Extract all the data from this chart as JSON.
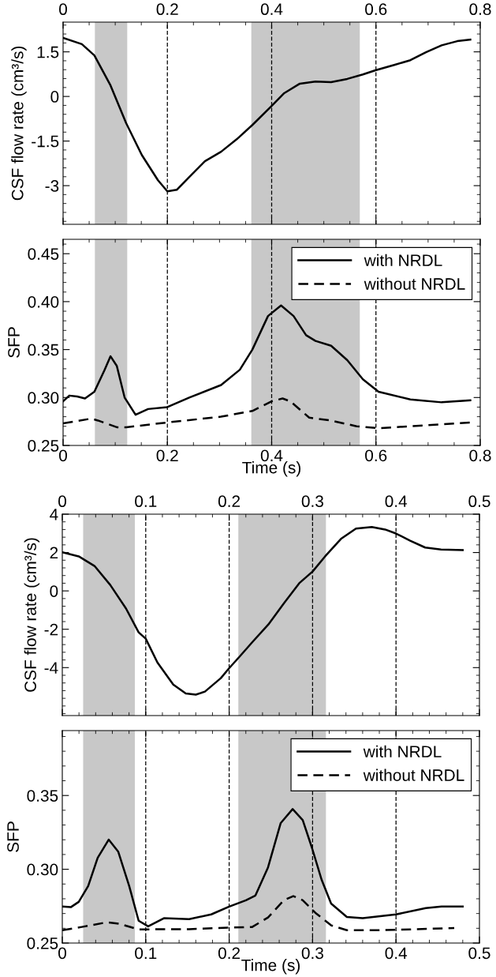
{
  "chart_data": [
    {
      "type": "line",
      "ylabel": "CSF flow rate (cm³/s)",
      "xlim": [
        0,
        0.8
      ],
      "xticks": [
        0,
        0.2,
        0.4,
        0.6,
        0.8
      ],
      "ylim": [
        -4.3,
        2.5
      ],
      "yticks": [
        -3,
        -1.5,
        0,
        1.5
      ],
      "grid": false,
      "legend": false,
      "bands": [
        {
          "axis": "x",
          "from": 0.061,
          "to": 0.123,
          "color": "#c8c8c8"
        },
        {
          "axis": "x",
          "from": 0.361,
          "to": 0.569,
          "color": "#c8c8c8"
        }
      ],
      "ref_lines": [
        {
          "axis": "x",
          "value": 0.2,
          "color": "#000000",
          "line_style": "dashed"
        },
        {
          "axis": "x",
          "value": 0.4,
          "color": "#000000",
          "line_style": "dashed"
        },
        {
          "axis": "x",
          "value": 0.6,
          "color": "#000000",
          "line_style": "dashed"
        }
      ],
      "series": [
        {
          "color": "#000000",
          "line_style": "solid",
          "x": [
            0,
            0.036,
            0.06,
            0.091,
            0.121,
            0.151,
            0.182,
            0.2,
            0.218,
            0.242,
            0.272,
            0.303,
            0.333,
            0.363,
            0.4,
            0.424,
            0.454,
            0.484,
            0.514,
            0.545,
            0.575,
            0.599,
            0.635,
            0.666,
            0.696,
            0.726,
            0.756,
            0.781
          ],
          "values": [
            1.97,
            1.76,
            1.38,
            0.37,
            -0.9,
            -1.97,
            -2.82,
            -3.19,
            -3.14,
            -2.71,
            -2.18,
            -1.86,
            -1.44,
            -0.96,
            -0.32,
            0.11,
            0.43,
            0.5,
            0.48,
            0.59,
            0.74,
            0.88,
            1.06,
            1.22,
            1.49,
            1.72,
            1.86,
            1.91
          ]
        }
      ]
    },
    {
      "type": "line",
      "xlabel": "Time (s)",
      "ylabel": "SFP",
      "xlim": [
        0,
        0.8
      ],
      "xticks": [
        0,
        0.2,
        0.4,
        0.6,
        0.8
      ],
      "ylim": [
        0.25,
        0.465
      ],
      "yticks": [
        {
          "value": 0.25,
          "label": "0.25"
        },
        {
          "value": 0.3,
          "label": "0.30"
        },
        {
          "value": 0.35,
          "label": "0.35"
        },
        {
          "value": 0.4,
          "label": "0.40"
        },
        {
          "value": 0.45,
          "label": "0.45"
        }
      ],
      "grid": false,
      "legend": "top right",
      "bands": [
        {
          "axis": "x",
          "from": 0.061,
          "to": 0.123,
          "color": "#c8c8c8"
        },
        {
          "axis": "x",
          "from": 0.361,
          "to": 0.569,
          "color": "#c8c8c8"
        }
      ],
      "ref_lines": [
        {
          "axis": "x",
          "value": 0.2,
          "color": "#000000",
          "line_style": "dashed"
        },
        {
          "axis": "x",
          "value": 0.4,
          "color": "#000000",
          "line_style": "dashed"
        },
        {
          "axis": "x",
          "value": 0.6,
          "color": "#000000",
          "line_style": "dashed"
        }
      ],
      "series": [
        {
          "name": "with NRDL",
          "color": "#000000",
          "line_style": "solid",
          "x": [
            0,
            0.012,
            0.027,
            0.042,
            0.06,
            0.079,
            0.091,
            0.103,
            0.118,
            0.139,
            0.163,
            0.2,
            0.242,
            0.303,
            0.339,
            0.363,
            0.393,
            0.418,
            0.442,
            0.466,
            0.484,
            0.514,
            0.545,
            0.575,
            0.605,
            0.666,
            0.726,
            0.781
          ],
          "values": [
            0.296,
            0.302,
            0.301,
            0.299,
            0.306,
            0.328,
            0.343,
            0.333,
            0.3,
            0.282,
            0.288,
            0.29,
            0.3,
            0.313,
            0.329,
            0.35,
            0.385,
            0.396,
            0.385,
            0.365,
            0.359,
            0.354,
            0.339,
            0.319,
            0.306,
            0.298,
            0.295,
            0.297
          ]
        },
        {
          "name": "without NRDL",
          "color": "#000000",
          "line_style": "dashed",
          "x": [
            0,
            0.054,
            0.067,
            0.103,
            0.121,
            0.2,
            0.303,
            0.363,
            0.4,
            0.421,
            0.436,
            0.472,
            0.514,
            0.563,
            0.605,
            0.696,
            0.781
          ],
          "values": [
            0.273,
            0.278,
            0.276,
            0.269,
            0.269,
            0.274,
            0.28,
            0.286,
            0.296,
            0.299,
            0.296,
            0.279,
            0.276,
            0.27,
            0.268,
            0.271,
            0.274
          ]
        }
      ]
    },
    {
      "type": "line",
      "ylabel": "CSF flow rate (cm³/s)",
      "xlim": [
        0,
        0.5
      ],
      "xticks": [
        0,
        0.1,
        0.2,
        0.3,
        0.4,
        0.5
      ],
      "ylim": [
        -6.5,
        4
      ],
      "yticks": [
        -4,
        -2,
        0,
        2,
        4
      ],
      "grid": false,
      "legend": false,
      "bands": [
        {
          "axis": "x",
          "from": 0.025,
          "to": 0.087,
          "color": "#c8c8c8"
        },
        {
          "axis": "x",
          "from": 0.211,
          "to": 0.316,
          "color": "#c8c8c8"
        }
      ],
      "ref_lines": [
        {
          "axis": "x",
          "value": 0.1,
          "color": "#000000",
          "line_style": "dashed"
        },
        {
          "axis": "x",
          "value": 0.2,
          "color": "#000000",
          "line_style": "dashed"
        },
        {
          "axis": "x",
          "value": 0.3,
          "color": "#000000",
          "line_style": "dashed"
        },
        {
          "axis": "x",
          "value": 0.4,
          "color": "#000000",
          "line_style": "dashed"
        }
      ],
      "series": [
        {
          "color": "#000000",
          "line_style": "solid",
          "x": [
            0,
            0.0197,
            0.0386,
            0.0575,
            0.0764,
            0.0915,
            0.1,
            0.114,
            0.133,
            0.148,
            0.16,
            0.171,
            0.19,
            0.2,
            0.213,
            0.228,
            0.247,
            0.265,
            0.284,
            0.3,
            0.315,
            0.334,
            0.352,
            0.371,
            0.387,
            0.4,
            0.417,
            0.435,
            0.454,
            0.48
          ],
          "values": [
            2.01,
            1.8,
            1.3,
            0.31,
            -0.92,
            -2.16,
            -2.49,
            -3.73,
            -4.88,
            -5.35,
            -5.41,
            -5.25,
            -4.55,
            -4.03,
            -3.4,
            -2.66,
            -1.75,
            -0.68,
            0.4,
            1.01,
            1.8,
            2.71,
            3.25,
            3.33,
            3.2,
            2.99,
            2.62,
            2.26,
            2.16,
            2.13
          ]
        }
      ]
    },
    {
      "type": "line",
      "xlabel": "Time (s)",
      "ylabel": "SFP",
      "xlim": [
        0,
        0.5
      ],
      "xticks": [
        0,
        0.1,
        0.2,
        0.3,
        0.4,
        0.5
      ],
      "ylim": [
        0.25,
        0.394
      ],
      "yticks": [
        {
          "value": 0.25,
          "label": "0.25"
        },
        {
          "value": 0.3,
          "label": "0.30"
        },
        {
          "value": 0.35,
          "label": "0.35"
        }
      ],
      "grid": false,
      "legend": "top right",
      "bands": [
        {
          "axis": "x",
          "from": 0.025,
          "to": 0.087,
          "color": "#c8c8c8"
        },
        {
          "axis": "x",
          "from": 0.211,
          "to": 0.316,
          "color": "#c8c8c8"
        }
      ],
      "ref_lines": [
        {
          "axis": "x",
          "value": 0.1,
          "color": "#000000",
          "line_style": "dashed"
        },
        {
          "axis": "x",
          "value": 0.2,
          "color": "#000000",
          "line_style": "dashed"
        },
        {
          "axis": "x",
          "value": 0.3,
          "color": "#000000",
          "line_style": "dashed"
        },
        {
          "axis": "x",
          "value": 0.4,
          "color": "#000000",
          "line_style": "dashed"
        }
      ],
      "series": [
        {
          "name": "with NRDL",
          "color": "#000000",
          "line_style": "solid",
          "x": [
            0,
            0.0102,
            0.0197,
            0.031,
            0.0424,
            0.0556,
            0.067,
            0.0802,
            0.0915,
            0.1029,
            0.1218,
            0.152,
            0.1785,
            0.2,
            0.2201,
            0.2315,
            0.2466,
            0.2617,
            0.2761,
            0.2882,
            0.2995,
            0.3109,
            0.3222,
            0.3411,
            0.3601,
            0.4,
            0.4357,
            0.4546,
            0.48
          ],
          "values": [
            0.2747,
            0.2743,
            0.2779,
            0.2886,
            0.3078,
            0.3201,
            0.312,
            0.2886,
            0.2651,
            0.2613,
            0.2668,
            0.2662,
            0.2694,
            0.2747,
            0.279,
            0.2822,
            0.3013,
            0.3312,
            0.3408,
            0.3333,
            0.3141,
            0.2928,
            0.2768,
            0.2677,
            0.2668,
            0.2694,
            0.2737,
            0.2747,
            0.2747
          ]
        },
        {
          "name": "without NRDL",
          "color": "#000000",
          "line_style": "dashed",
          "x": [
            0,
            0.0234,
            0.0537,
            0.0688,
            0.0915,
            0.1218,
            0.152,
            0.2,
            0.2277,
            0.2466,
            0.2655,
            0.2769,
            0.2882,
            0.3033,
            0.3222,
            0.3411,
            0.379,
            0.4168,
            0.4698
          ],
          "values": [
            0.2587,
            0.2609,
            0.2641,
            0.263,
            0.2592,
            0.2594,
            0.2594,
            0.2604,
            0.2609,
            0.2673,
            0.279,
            0.2818,
            0.279,
            0.2705,
            0.262,
            0.2587,
            0.2587,
            0.2592,
            0.2602
          ]
        }
      ]
    }
  ]
}
